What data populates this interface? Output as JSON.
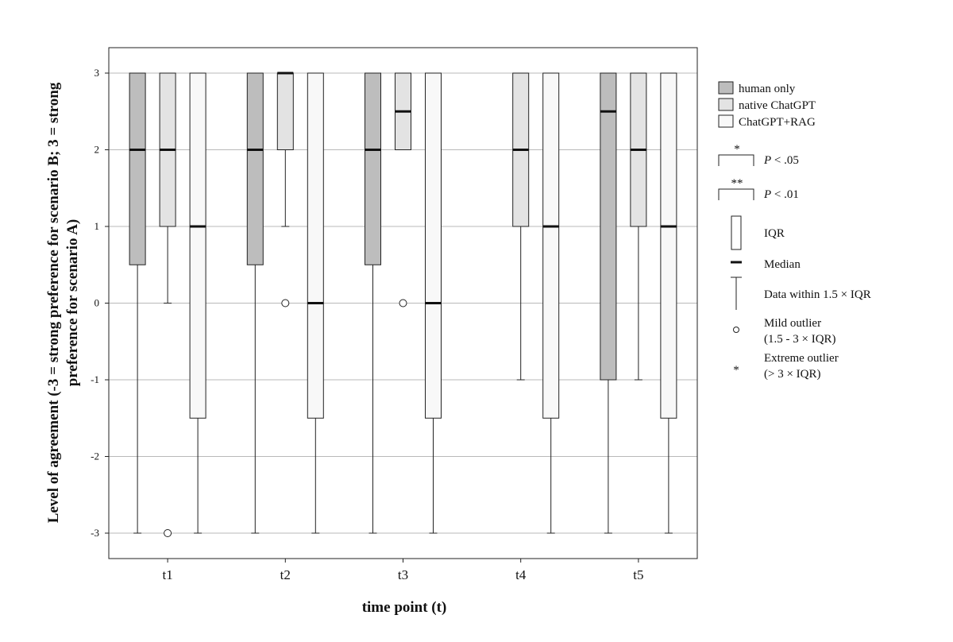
{
  "chart_data": {
    "type": "boxplot",
    "title": "",
    "xlabel": "time point (t)",
    "ylabel_lines": [
      "Level of agreement (-3 = strong preference for scenario B; 3 = strong",
      "preference for scenario A)"
    ],
    "ylim": [
      -3.35,
      3.3
    ],
    "yticks": [
      3,
      2,
      1,
      0,
      -1,
      -2,
      -3
    ],
    "ytick_labels": [
      "3",
      "2",
      "1",
      "0",
      "-1",
      "-2",
      "-3"
    ],
    "grid": true,
    "legend_position": "right",
    "categories": [
      "t1",
      "t2",
      "t3",
      "t4",
      "t5"
    ],
    "series": [
      {
        "name": "human only",
        "color": "#bdbdbd",
        "boxes": [
          {
            "category": "t1",
            "min": -3,
            "q1": 0.5,
            "median": 2,
            "q3": 3,
            "max": 3,
            "outliers": []
          },
          {
            "category": "t2",
            "min": -3,
            "q1": 0.5,
            "median": 2,
            "q3": 3,
            "max": 3,
            "outliers": []
          },
          {
            "category": "t3",
            "min": -3,
            "q1": 0.5,
            "median": 2,
            "q3": 3,
            "max": 3,
            "outliers": []
          },
          {
            "category": "t4",
            "min": null,
            "q1": null,
            "median": null,
            "q3": null,
            "max": null,
            "outliers": []
          },
          {
            "category": "t5",
            "min": -3,
            "q1": -1,
            "median": 2.5,
            "q3": 3,
            "max": 3,
            "outliers": []
          }
        ]
      },
      {
        "name": "native ChatGPT",
        "color": "#e3e3e3",
        "boxes": [
          {
            "category": "t1",
            "min": 0,
            "q1": 1,
            "median": 2,
            "q3": 3,
            "max": 3,
            "outliers": [
              -3
            ]
          },
          {
            "category": "t2",
            "min": 1,
            "q1": 2,
            "median": 3,
            "q3": 3,
            "max": 3,
            "outliers": [
              0
            ]
          },
          {
            "category": "t3",
            "min": 2,
            "q1": 2,
            "median": 2.5,
            "q3": 3,
            "max": 3,
            "outliers": [
              0
            ]
          },
          {
            "category": "t4",
            "min": -1,
            "q1": 1,
            "median": 2,
            "q3": 3,
            "max": 3,
            "outliers": []
          },
          {
            "category": "t5",
            "min": -1,
            "q1": 1,
            "median": 2,
            "q3": 3,
            "max": 3,
            "outliers": []
          }
        ]
      },
      {
        "name": "ChatGPT+RAG",
        "color": "#f8f8f8",
        "boxes": [
          {
            "category": "t1",
            "min": -3,
            "q1": -1.5,
            "median": 1,
            "q3": 3,
            "max": 3,
            "outliers": []
          },
          {
            "category": "t2",
            "min": -3,
            "q1": -1.5,
            "median": 0,
            "q3": 3,
            "max": 3,
            "outliers": []
          },
          {
            "category": "t3",
            "min": -3,
            "q1": -1.5,
            "median": 0,
            "q3": 3,
            "max": 3,
            "outliers": []
          },
          {
            "category": "t4",
            "min": -3,
            "q1": -1.5,
            "median": 1,
            "q3": 3,
            "max": 3,
            "outliers": []
          },
          {
            "category": "t5",
            "min": -3,
            "q1": -1.5,
            "median": 1,
            "q3": 3,
            "max": 3,
            "outliers": []
          }
        ]
      }
    ],
    "legend": {
      "significance": [
        {
          "symbol": "*",
          "label_prefix": "P",
          "label_suffix": " < .05"
        },
        {
          "symbol": "**",
          "label_prefix": "P",
          "label_suffix": " < .01"
        }
      ],
      "key": {
        "iqr": "IQR",
        "median": "Median",
        "whisker": "Data within 1.5 × IQR",
        "mild_outlier": [
          "Mild outlier",
          "(1.5 - 3 × IQR)"
        ],
        "extreme_outlier_symbol": "*",
        "extreme_outlier": [
          "Extreme outlier",
          "(> 3 × IQR)"
        ]
      }
    }
  }
}
